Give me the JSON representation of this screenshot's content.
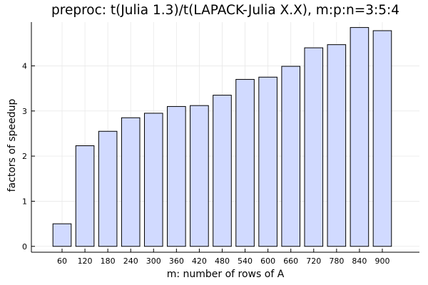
{
  "chart_data": {
    "type": "bar",
    "title": "preproc: t(Julia 1.3)/t(LAPACK-Julia X.X), m:p:n=3:5:4",
    "xlabel": "m: number of rows of A",
    "ylabel": "factors of speedup",
    "categories": [
      "60",
      "120",
      "180",
      "240",
      "300",
      "360",
      "420",
      "480",
      "540",
      "600",
      "660",
      "720",
      "780",
      "840",
      "900"
    ],
    "values": [
      0.5,
      2.23,
      2.55,
      2.85,
      2.95,
      3.1,
      3.12,
      3.35,
      3.7,
      3.75,
      3.99,
      4.4,
      4.47,
      4.85,
      4.78
    ],
    "ylim": [
      -0.13,
      4.97
    ],
    "yticks": [
      0,
      1,
      2,
      3,
      4
    ],
    "grid": true,
    "legend": "none",
    "bar_color": "#d1daff"
  }
}
